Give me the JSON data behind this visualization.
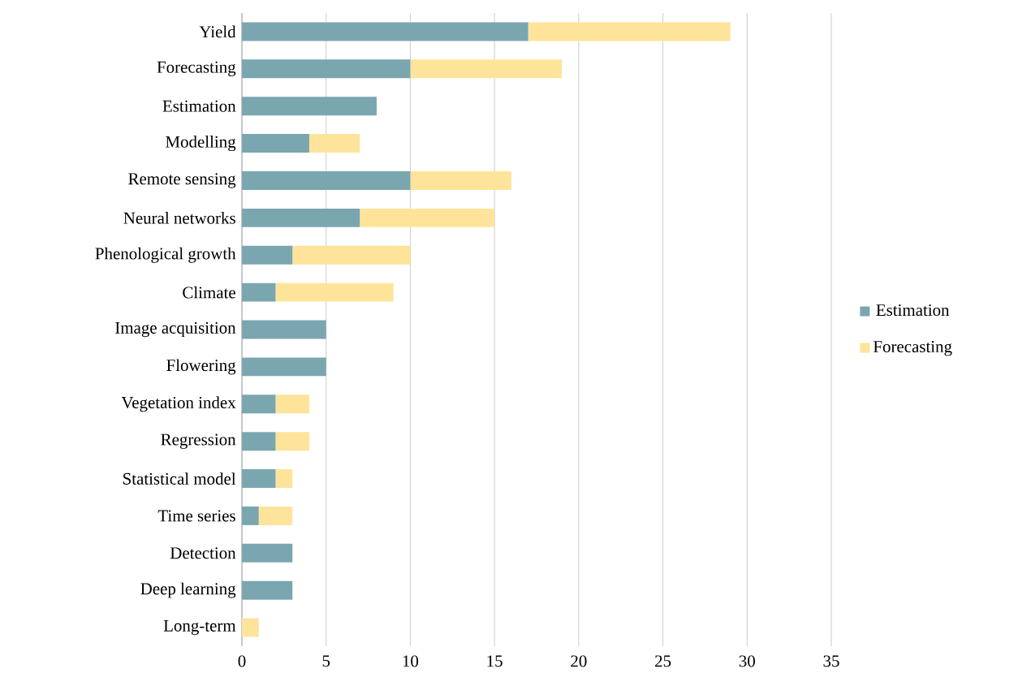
{
  "chart_data": {
    "type": "bar",
    "orientation": "horizontal",
    "stacked": true,
    "categories": [
      "Yield",
      "Forecasting",
      "Estimation",
      "Modelling",
      "Remote sensing",
      "Neural networks",
      "Phenological growth",
      "Climate",
      "Image acquisition",
      "Flowering",
      "Vegetation index",
      "Regression",
      "Statistical model",
      "Time series",
      "Detection",
      "Deep learning",
      "Long-term"
    ],
    "series": [
      {
        "name": "Estimation",
        "color": "#7aa6b0",
        "values": [
          17,
          10,
          8,
          4,
          10,
          7,
          3,
          2,
          5,
          5,
          2,
          2,
          2,
          1,
          3,
          3,
          0
        ]
      },
      {
        "name": "Forecasting",
        "color": "#fde49a",
        "values": [
          12,
          9,
          0,
          3,
          6,
          8,
          7,
          7,
          0,
          0,
          2,
          2,
          1,
          2,
          0,
          0,
          1
        ]
      }
    ],
    "xlim": [
      0,
      35
    ],
    "xticks": [
      0,
      5,
      10,
      15,
      20,
      25,
      30,
      35
    ],
    "grid": "x",
    "legend": "right"
  }
}
